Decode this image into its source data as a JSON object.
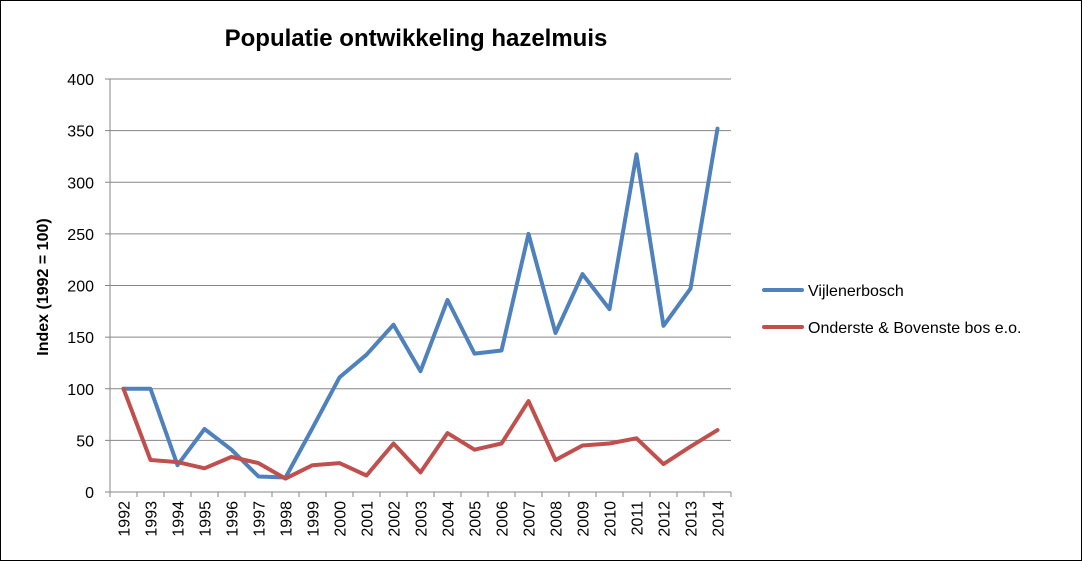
{
  "chart_data": {
    "type": "line",
    "title": "Populatie ontwikkeling hazelmuis",
    "xlabel": "",
    "ylabel": "Index (1992 = 100)",
    "ylim": [
      0,
      400
    ],
    "yticks": [
      0,
      50,
      100,
      150,
      200,
      250,
      300,
      350,
      400
    ],
    "grid": true,
    "legend_position": "right",
    "categories": [
      "1992",
      "1993",
      "1994",
      "1995",
      "1996",
      "1997",
      "1998",
      "1999",
      "2000",
      "2001",
      "2002",
      "2003",
      "2004",
      "2005",
      "2006",
      "2007",
      "2008",
      "2009",
      "2010",
      "2011",
      "2012",
      "2013",
      "2014"
    ],
    "series": [
      {
        "name": "Vijlenerbosch",
        "color": "#4f81bd",
        "values": [
          100,
          100,
          26,
          61,
          41,
          15,
          14,
          62,
          111,
          133,
          162,
          117,
          186,
          134,
          137,
          250,
          154,
          211,
          177,
          327,
          161,
          197,
          352
        ]
      },
      {
        "name": "Onderste & Bovenste bos e.o.",
        "color": "#c0504d",
        "values": [
          100,
          31,
          29,
          23,
          34,
          28,
          13,
          26,
          28,
          16,
          47,
          19,
          57,
          41,
          47,
          88,
          31,
          45,
          47,
          52,
          27,
          44,
          60
        ]
      }
    ],
    "colors": {
      "gridline": "#868686",
      "axis": "#868686",
      "text": "#000000"
    }
  }
}
